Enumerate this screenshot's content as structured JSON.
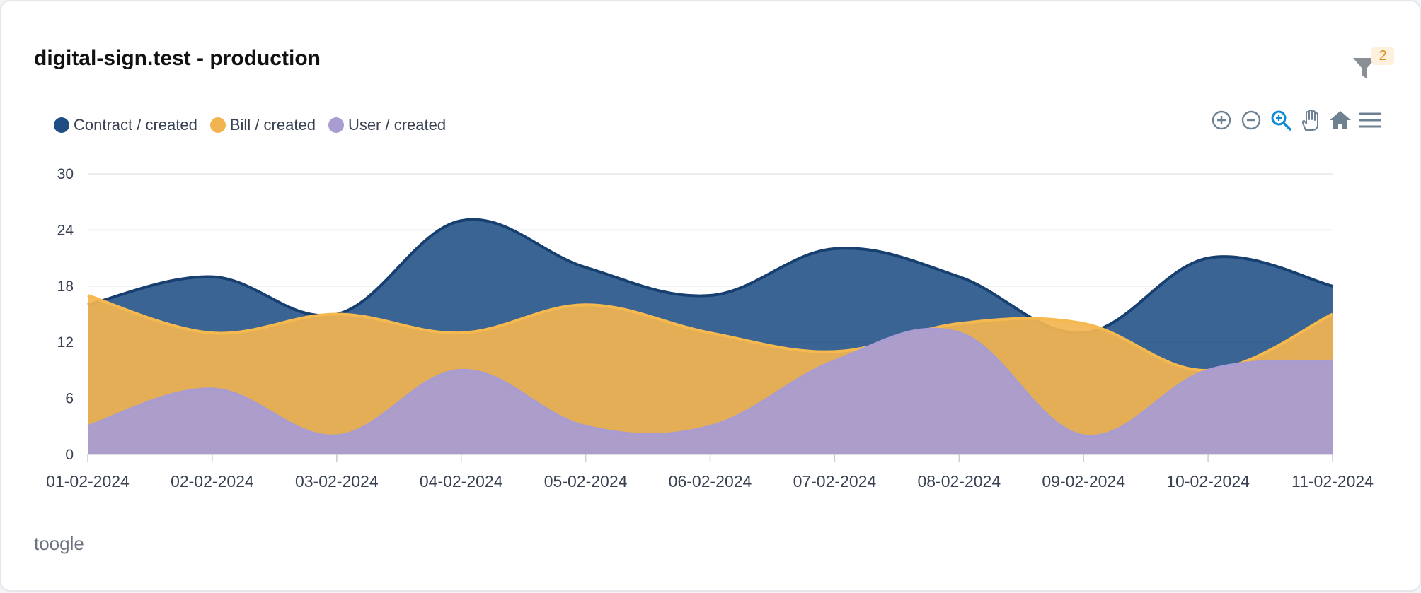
{
  "card": {
    "title": "digital-sign.test - production",
    "filter_badge": "2",
    "toggle_label": "toogle"
  },
  "toolbar": {
    "items": [
      "zoom-in",
      "zoom-out",
      "selection-zoom",
      "pan",
      "reset",
      "menu"
    ]
  },
  "colors": {
    "contract": "#1f4e85",
    "bill": "#f2b450",
    "user": "#a99cd1"
  },
  "chart_data": {
    "type": "area",
    "title": "digital-sign.test - production",
    "xlabel": "",
    "ylabel": "",
    "ylim": [
      0,
      30
    ],
    "yticks": [
      "0",
      "6",
      "12",
      "18",
      "24",
      "30"
    ],
    "categories": [
      "01-02-2024",
      "02-02-2024",
      "03-02-2024",
      "04-02-2024",
      "05-02-2024",
      "06-02-2024",
      "07-02-2024",
      "08-02-2024",
      "09-02-2024",
      "10-02-2024",
      "11-02-2024"
    ],
    "legend_position": "top-left",
    "grid": true,
    "series": [
      {
        "name": "Contract / created",
        "values": [
          16,
          19,
          15,
          25,
          20,
          17,
          22,
          19,
          13,
          21,
          18
        ]
      },
      {
        "name": "Bill / created",
        "values": [
          17,
          13,
          15,
          13,
          16,
          13,
          11,
          14,
          14,
          9,
          15
        ]
      },
      {
        "name": "User / created",
        "values": [
          3,
          7,
          2,
          9,
          3,
          3,
          10,
          13,
          2,
          9,
          10
        ]
      }
    ]
  }
}
